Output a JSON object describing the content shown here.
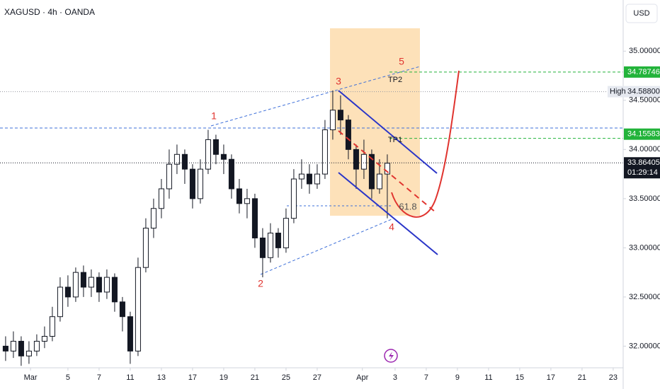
{
  "chart_data": {
    "type": "candlestick",
    "title": "XAGUSD · 4h · OANDA",
    "currency": "USD",
    "candles": {
      "x": [
        -4,
        -3.5,
        -3,
        -2.5,
        -2,
        -1.5,
        -1,
        -0.5,
        0,
        0.5,
        1,
        1.5,
        2,
        2.5,
        3,
        3.5,
        4,
        4.5,
        5,
        5.5,
        6,
        6.5,
        7,
        7.5,
        8,
        8.5,
        9,
        9.5,
        10,
        10.5,
        11,
        11.5,
        12,
        12.5,
        13,
        13.5,
        14,
        14.5,
        15,
        15.5,
        16,
        16.5,
        17,
        17.5,
        18,
        18.5,
        19,
        19.5,
        20,
        20.5
      ],
      "open": [
        32.0,
        31.95,
        32.05,
        31.9,
        31.95,
        32.05,
        32.1,
        32.3,
        32.6,
        32.5,
        32.75,
        32.6,
        32.7,
        32.55,
        32.7,
        32.45,
        32.3,
        31.95,
        32.8,
        33.2,
        33.4,
        33.6,
        33.85,
        33.95,
        33.8,
        33.5,
        33.8,
        34.1,
        33.95,
        33.9,
        33.6,
        33.45,
        33.5,
        33.1,
        32.9,
        33.15,
        33.0,
        33.3,
        33.7,
        33.75,
        33.65,
        33.75,
        34.2,
        34.4,
        34.3,
        34.0,
        33.8,
        33.95,
        33.6,
        33.75
      ],
      "high": [
        32.1,
        32.15,
        32.1,
        32.05,
        32.12,
        32.2,
        32.4,
        32.7,
        32.72,
        32.8,
        32.82,
        32.78,
        32.75,
        32.78,
        32.74,
        32.5,
        32.35,
        32.9,
        33.3,
        33.5,
        33.7,
        34.0,
        34.05,
        34.0,
        33.85,
        33.9,
        34.2,
        34.15,
        34.05,
        33.95,
        33.7,
        33.6,
        33.55,
        33.2,
        33.25,
        33.2,
        33.4,
        33.8,
        33.9,
        33.85,
        33.85,
        34.3,
        34.6,
        34.55,
        34.35,
        34.05,
        34.1,
        34.0,
        33.9,
        33.95
      ],
      "low": [
        31.85,
        31.88,
        31.8,
        31.82,
        31.9,
        31.98,
        32.05,
        32.25,
        32.4,
        32.45,
        32.5,
        32.5,
        32.45,
        32.48,
        32.35,
        32.15,
        31.82,
        31.9,
        32.75,
        33.1,
        33.3,
        33.5,
        33.75,
        33.65,
        33.4,
        33.45,
        33.75,
        33.85,
        33.75,
        33.5,
        33.35,
        33.3,
        33.0,
        32.7,
        32.85,
        32.9,
        32.95,
        33.25,
        33.6,
        33.55,
        33.6,
        33.7,
        34.1,
        34.15,
        33.9,
        33.6,
        33.7,
        33.5,
        33.55,
        33.3
      ],
      "close": [
        31.95,
        32.05,
        31.9,
        31.95,
        32.05,
        32.1,
        32.3,
        32.6,
        32.5,
        32.75,
        32.6,
        32.7,
        32.55,
        32.7,
        32.45,
        32.3,
        31.95,
        32.8,
        33.2,
        33.4,
        33.6,
        33.85,
        33.95,
        33.8,
        33.5,
        33.8,
        34.1,
        33.95,
        33.9,
        33.6,
        33.45,
        33.5,
        33.1,
        32.9,
        33.15,
        33.0,
        33.3,
        33.7,
        33.75,
        33.65,
        33.75,
        34.2,
        34.4,
        34.3,
        34.0,
        33.8,
        33.95,
        33.6,
        33.75,
        33.86
      ]
    },
    "xlim": [
      -4.36,
      35.64
    ],
    "xticks": [
      {
        "value": -2.4,
        "label": "Mar"
      },
      0,
      2,
      4,
      6,
      8,
      10,
      12,
      14,
      16,
      {
        "value": 18.9,
        "label": "Apr"
      },
      21,
      23,
      25,
      27,
      29,
      31,
      33,
      35
    ],
    "xtick_labels": [
      "Mar",
      "5",
      "7",
      "11",
      "13",
      "17",
      "19",
      "21",
      "25",
      "27",
      "Apr",
      "3",
      "7",
      "9",
      "11",
      "15",
      "17",
      "21",
      "23"
    ],
    "ylim": [
      31.78,
      35.52
    ],
    "yticks": [
      {
        "value": 35,
        "label": "35.00000"
      },
      {
        "value": 34.5,
        "label": "34.50000"
      },
      {
        "value": 34,
        "label": "34.00000"
      },
      {
        "value": 33.5,
        "label": "33.50000"
      },
      {
        "value": 33,
        "label": "33.00000"
      },
      {
        "value": 32.5,
        "label": "32.50000"
      },
      {
        "value": 32,
        "label": "32.00000"
      }
    ],
    "levels": [
      34.78746,
      {
        "value": 34.588,
        "label": "34.58800"
      },
      34.15583,
      33.86405
    ],
    "high_label": "High",
    "countdown": "01:29:14",
    "annotations": [
      "1",
      "2",
      "3",
      "4",
      "5",
      "TP1",
      "TP2",
      "61.8"
    ]
  }
}
